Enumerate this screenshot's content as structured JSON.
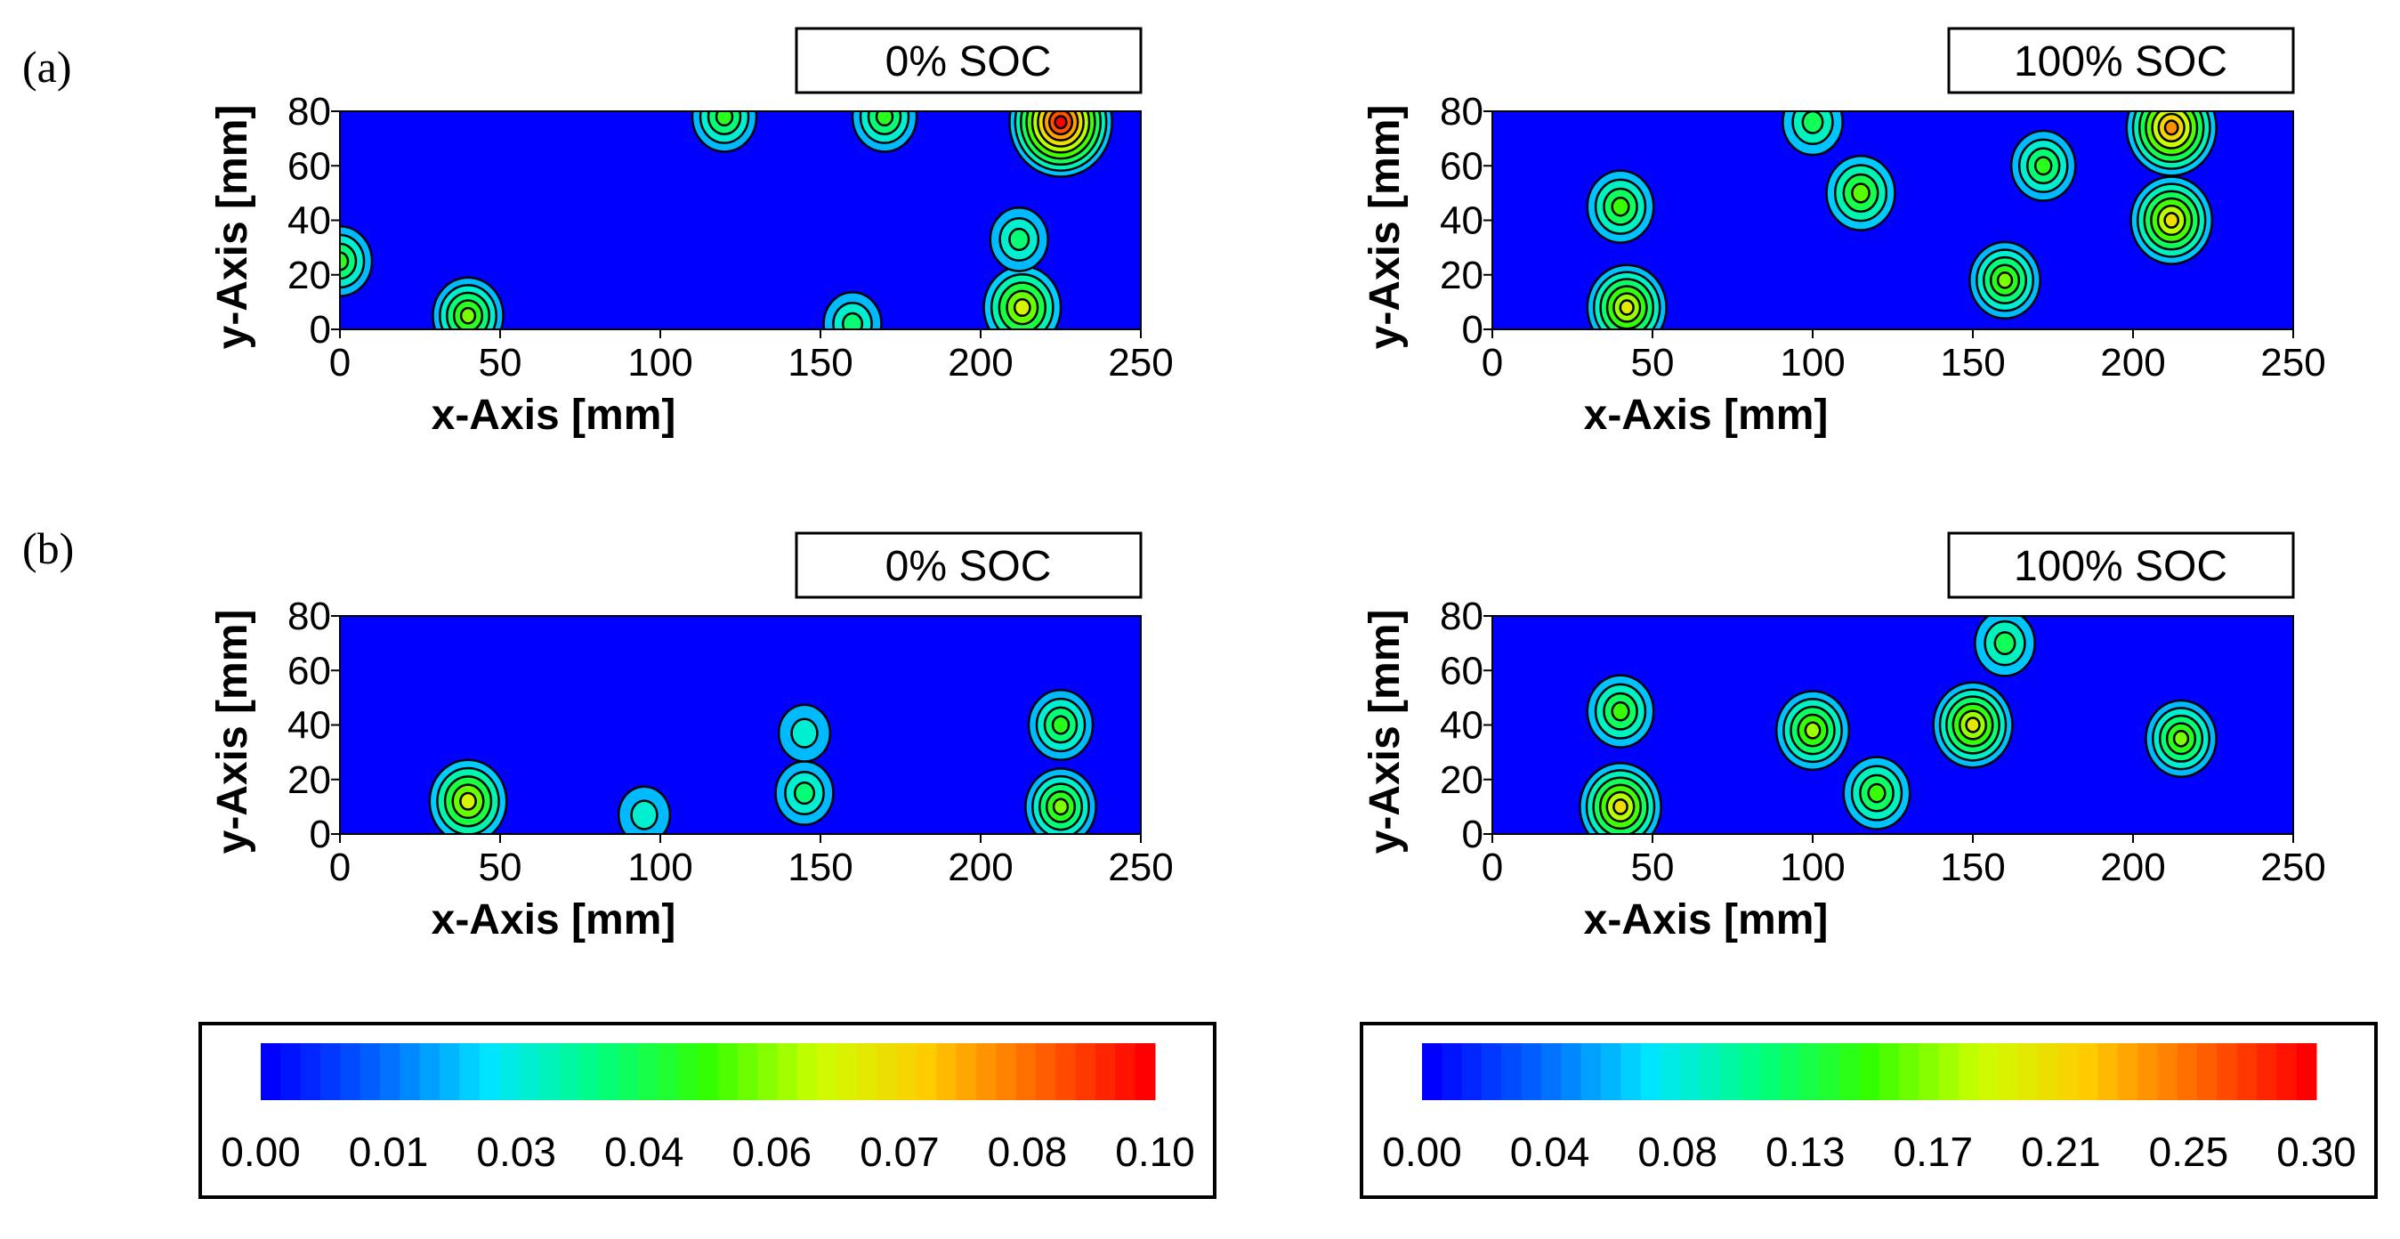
{
  "figure": {
    "row_labels": [
      "(a)",
      "(b)"
    ]
  },
  "colors": {
    "scale": [
      "#0000ff",
      "#0066ff",
      "#00e5ff",
      "#00ff80",
      "#33ff00",
      "#ccff00",
      "#ffcc00",
      "#ff6600",
      "#ff0000"
    ],
    "contour": "#000000"
  },
  "chart_data": [
    {
      "type": "contour",
      "row": "(a)",
      "title": "0% SOC",
      "xlabel": "x-Axis [mm]",
      "ylabel": "y-Axis [mm]",
      "xlim": [
        0,
        250
      ],
      "ylim": [
        0,
        80
      ],
      "xticks": [
        "0",
        "50",
        "100",
        "150",
        "200",
        "250"
      ],
      "yticks": [
        "0",
        "20",
        "40",
        "60",
        "80"
      ],
      "vmax": 0.1,
      "hotspots": [
        {
          "x": 225,
          "y": 76,
          "value": 0.1
        },
        {
          "x": 120,
          "y": 78,
          "value": 0.04
        },
        {
          "x": 170,
          "y": 78,
          "value": 0.04
        },
        {
          "x": 213,
          "y": 8,
          "value": 0.06
        },
        {
          "x": 212,
          "y": 33,
          "value": 0.03
        },
        {
          "x": 40,
          "y": 5,
          "value": 0.05
        },
        {
          "x": 0,
          "y": 25,
          "value": 0.04
        },
        {
          "x": 160,
          "y": 2,
          "value": 0.03
        }
      ]
    },
    {
      "type": "contour",
      "row": "(a)",
      "title": "100% SOC",
      "xlabel": "x-Axis [mm]",
      "ylabel": "y-Axis [mm]",
      "xlim": [
        0,
        250
      ],
      "ylim": [
        0,
        80
      ],
      "xticks": [
        "0",
        "50",
        "100",
        "150",
        "200",
        "250"
      ],
      "yticks": [
        "0",
        "20",
        "40",
        "60",
        "80"
      ],
      "vmax": 0.3,
      "hotspots": [
        {
          "x": 42,
          "y": 8,
          "value": 0.19
        },
        {
          "x": 40,
          "y": 45,
          "value": 0.13
        },
        {
          "x": 115,
          "y": 50,
          "value": 0.14
        },
        {
          "x": 160,
          "y": 18,
          "value": 0.15
        },
        {
          "x": 172,
          "y": 60,
          "value": 0.12
        },
        {
          "x": 212,
          "y": 40,
          "value": 0.2
        },
        {
          "x": 212,
          "y": 74,
          "value": 0.24
        },
        {
          "x": 100,
          "y": 76,
          "value": 0.1
        }
      ]
    },
    {
      "type": "contour",
      "row": "(b)",
      "title": "0% SOC",
      "xlabel": "x-Axis [mm]",
      "ylabel": "y-Axis [mm]",
      "xlim": [
        0,
        250
      ],
      "ylim": [
        0,
        80
      ],
      "xticks": [
        "0",
        "50",
        "100",
        "150",
        "200",
        "250"
      ],
      "yticks": [
        "0",
        "20",
        "40",
        "60",
        "80"
      ],
      "vmax": 0.1,
      "hotspots": [
        {
          "x": 40,
          "y": 12,
          "value": 0.06
        },
        {
          "x": 225,
          "y": 40,
          "value": 0.04
        },
        {
          "x": 225,
          "y": 10,
          "value": 0.05
        },
        {
          "x": 145,
          "y": 15,
          "value": 0.03
        },
        {
          "x": 145,
          "y": 37,
          "value": 0.02
        },
        {
          "x": 95,
          "y": 7,
          "value": 0.02
        }
      ]
    },
    {
      "type": "contour",
      "row": "(b)",
      "title": "100% SOC",
      "xlabel": "x-Axis [mm]",
      "ylabel": "y-Axis [mm]",
      "xlim": [
        0,
        250
      ],
      "ylim": [
        0,
        80
      ],
      "xticks": [
        "0",
        "50",
        "100",
        "150",
        "200",
        "250"
      ],
      "yticks": [
        "0",
        "20",
        "40",
        "60",
        "80"
      ],
      "vmax": 0.3,
      "hotspots": [
        {
          "x": 40,
          "y": 10,
          "value": 0.2
        },
        {
          "x": 40,
          "y": 45,
          "value": 0.13
        },
        {
          "x": 100,
          "y": 38,
          "value": 0.16
        },
        {
          "x": 150,
          "y": 40,
          "value": 0.19
        },
        {
          "x": 120,
          "y": 15,
          "value": 0.13
        },
        {
          "x": 215,
          "y": 35,
          "value": 0.15
        },
        {
          "x": 160,
          "y": 70,
          "value": 0.1
        }
      ]
    },
    {
      "type": "colorbar",
      "range": [
        0.0,
        0.1
      ],
      "tick_labels": [
        "0.00",
        "0.01",
        "0.03",
        "0.04",
        "0.06",
        "0.07",
        "0.08",
        "0.10"
      ]
    },
    {
      "type": "colorbar",
      "range": [
        0.0,
        0.3
      ],
      "tick_labels": [
        "0.00",
        "0.04",
        "0.08",
        "0.13",
        "0.17",
        "0.21",
        "0.25",
        "0.30"
      ]
    }
  ]
}
